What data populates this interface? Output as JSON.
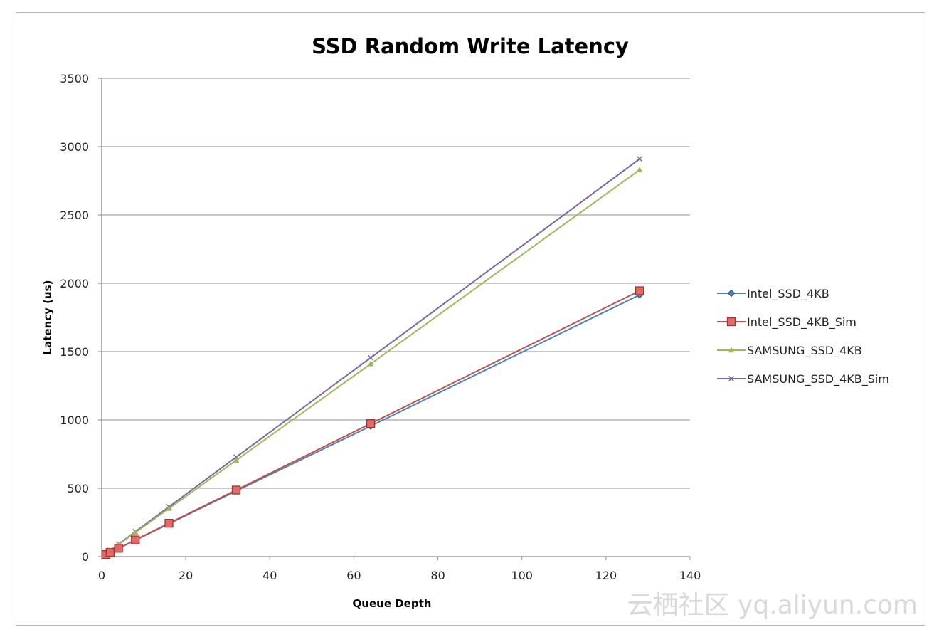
{
  "chart_data": {
    "type": "line",
    "title": "SSD Random Write Latency",
    "xlabel": "Queue Depth",
    "ylabel": "Latency (us)",
    "xlim": [
      0,
      140
    ],
    "ylim": [
      0,
      3500
    ],
    "x_ticks": [
      "0",
      "20",
      "40",
      "60",
      "80",
      "100",
      "120",
      "140"
    ],
    "y_ticks": [
      "0",
      "500",
      "1000",
      "1500",
      "2000",
      "2500",
      "3000",
      "3500"
    ],
    "grid": "horizontal",
    "legend_position": "right",
    "series": [
      {
        "name": "Intel_SSD_4KB",
        "color": "#4f81bd",
        "marker": "diamond",
        "x": [
          1,
          2,
          4,
          8,
          16,
          32,
          64,
          128
        ],
        "y": [
          15,
          30,
          60,
          120,
          240,
          480,
          955,
          1915
        ]
      },
      {
        "name": "Intel_SSD_4KB_Sim",
        "color": "#c0504d",
        "marker": "square",
        "x": [
          1,
          2,
          4,
          8,
          16,
          32,
          64,
          128
        ],
        "y": [
          15,
          30,
          61,
          122,
          244,
          487,
          973,
          1945
        ]
      },
      {
        "name": "SAMSUNG_SSD_4KB",
        "color": "#9bbb59",
        "marker": "triangle",
        "x": [
          1,
          2,
          4,
          8,
          16,
          32,
          64,
          128
        ],
        "y": [
          22,
          44,
          88,
          176,
          352,
          705,
          1410,
          2830
        ]
      },
      {
        "name": "SAMSUNG_SSD_4KB_Sim",
        "color": "#8064a2",
        "marker": "x",
        "x": [
          1,
          2,
          4,
          8,
          16,
          32,
          64,
          128
        ],
        "y": [
          23,
          46,
          91,
          182,
          364,
          728,
          1455,
          2910
        ]
      }
    ]
  },
  "watermark": "云栖社区 yq.aliyun.com"
}
